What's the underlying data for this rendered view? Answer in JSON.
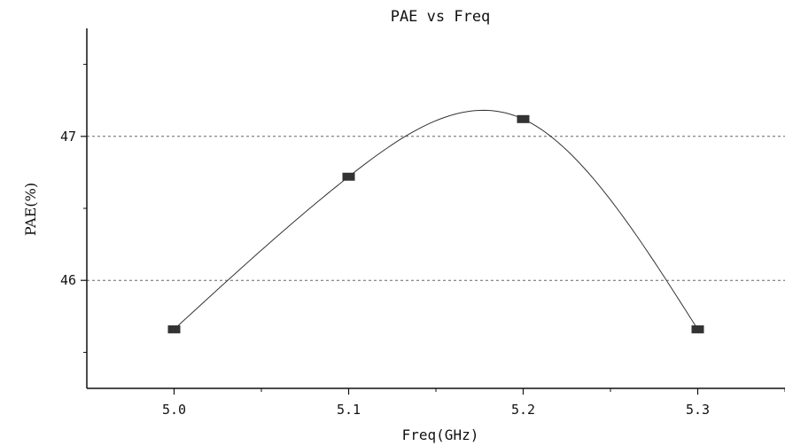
{
  "chart_data": {
    "type": "line",
    "title": "PAE vs Freq",
    "xlabel": "Freq(GHz)",
    "ylabel": "PAE(%)",
    "x": [
      5.0,
      5.1,
      5.2,
      5.3
    ],
    "series": [
      {
        "values": [
          45.66,
          46.72,
          47.12,
          45.66
        ],
        "marker": "square",
        "color": "#333333"
      }
    ],
    "xlim": [
      4.95,
      5.35
    ],
    "ylim": [
      45.25,
      47.75
    ],
    "x_ticks": [
      "5.0",
      "5.1",
      "5.2",
      "5.3"
    ],
    "y_ticks": [
      "46",
      "47"
    ],
    "grid": "horizontal dashed at 46 and 47",
    "legend": "none",
    "smooth": true
  }
}
